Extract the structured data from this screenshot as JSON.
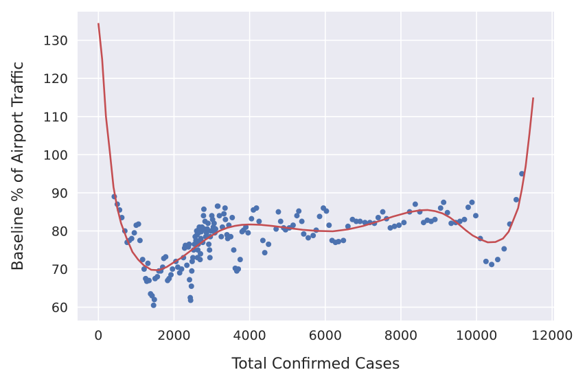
{
  "chart_data": {
    "type": "scatter",
    "title": "",
    "xlabel": "Total Confirmed Cases",
    "ylabel": "Baseline % of Airport Traffic",
    "xlim": [
      -550,
      12050
    ],
    "ylim": [
      56.5,
      137.5
    ],
    "x_ticks": [
      0,
      2000,
      4000,
      6000,
      8000,
      10000,
      12000
    ],
    "x_tick_labels": [
      "0",
      "2000",
      "4000",
      "6000",
      "8000",
      "10000",
      "12000"
    ],
    "y_ticks": [
      60,
      70,
      80,
      90,
      100,
      110,
      120,
      130
    ],
    "y_tick_labels": [
      "60",
      "70",
      "80",
      "90",
      "100",
      "110",
      "120",
      "130"
    ],
    "grid": true,
    "background": "#eaeaf2",
    "colors": {
      "points": "#4c72b0",
      "fit": "#c44e52",
      "grid": "#ffffff"
    },
    "series": [
      {
        "kind": "scatter",
        "points": [
          [
            420,
            89
          ],
          [
            500,
            87
          ],
          [
            560,
            85.5
          ],
          [
            620,
            83.5
          ],
          [
            700,
            80
          ],
          [
            760,
            77
          ],
          [
            820,
            77.5
          ],
          [
            880,
            78
          ],
          [
            950,
            79.5
          ],
          [
            1000,
            81.5
          ],
          [
            1060,
            81.8
          ],
          [
            1100,
            77.5
          ],
          [
            1170,
            72.5
          ],
          [
            1210,
            70
          ],
          [
            1250,
            67.5
          ],
          [
            1280,
            66.8
          ],
          [
            1310,
            71.5
          ],
          [
            1340,
            67
          ],
          [
            1380,
            63.5
          ],
          [
            1420,
            63
          ],
          [
            1460,
            60.5
          ],
          [
            1480,
            62
          ],
          [
            1500,
            67.5
          ],
          [
            1560,
            68
          ],
          [
            1600,
            69.5
          ],
          [
            1650,
            69.5
          ],
          [
            1700,
            70.5
          ],
          [
            1730,
            72.8
          ],
          [
            1780,
            73.2
          ],
          [
            1830,
            67
          ],
          [
            1870,
            67.5
          ],
          [
            1920,
            68.5
          ],
          [
            1960,
            70
          ],
          [
            2050,
            72
          ],
          [
            2100,
            70.5
          ],
          [
            2150,
            69
          ],
          [
            2200,
            70
          ],
          [
            2250,
            73
          ],
          [
            2280,
            75.5
          ],
          [
            2300,
            76.2
          ],
          [
            2340,
            71
          ],
          [
            2380,
            75.8
          ],
          [
            2400,
            76.5
          ],
          [
            2410,
            67.2
          ],
          [
            2430,
            62.5
          ],
          [
            2440,
            61.8
          ],
          [
            2460,
            65.5
          ],
          [
            2470,
            69.5
          ],
          [
            2480,
            72
          ],
          [
            2500,
            73
          ],
          [
            2520,
            75
          ],
          [
            2540,
            76.5
          ],
          [
            2560,
            78.5
          ],
          [
            2580,
            77.5
          ],
          [
            2600,
            80
          ],
          [
            2610,
            79
          ],
          [
            2620,
            73
          ],
          [
            2630,
            75
          ],
          [
            2640,
            76.5
          ],
          [
            2650,
            79.5
          ],
          [
            2660,
            80.5
          ],
          [
            2670,
            81
          ],
          [
            2680,
            77.5
          ],
          [
            2690,
            72.5
          ],
          [
            2700,
            74
          ],
          [
            2710,
            78
          ],
          [
            2720,
            79.8
          ],
          [
            2740,
            81
          ],
          [
            2760,
            77
          ],
          [
            2780,
            84
          ],
          [
            2790,
            85.7
          ],
          [
            2800,
            80.5
          ],
          [
            2820,
            82.5
          ],
          [
            2840,
            78.5
          ],
          [
            2860,
            79.5
          ],
          [
            2880,
            80.5
          ],
          [
            2900,
            82
          ],
          [
            2920,
            76.5
          ],
          [
            2940,
            75
          ],
          [
            2950,
            73
          ],
          [
            2960,
            78.5
          ],
          [
            2980,
            80
          ],
          [
            3000,
            84
          ],
          [
            3020,
            83
          ],
          [
            3040,
            81
          ],
          [
            3060,
            82
          ],
          [
            3080,
            79.5
          ],
          [
            3100,
            80.5
          ],
          [
            3150,
            86.5
          ],
          [
            3160,
            86.5
          ],
          [
            3200,
            84
          ],
          [
            3250,
            78.5
          ],
          [
            3280,
            81
          ],
          [
            3320,
            84.5
          ],
          [
            3350,
            86
          ],
          [
            3360,
            83
          ],
          [
            3400,
            79
          ],
          [
            3420,
            78
          ],
          [
            3450,
            81.5
          ],
          [
            3500,
            78.5
          ],
          [
            3540,
            83.5
          ],
          [
            3580,
            75
          ],
          [
            3620,
            70.2
          ],
          [
            3660,
            69.5
          ],
          [
            3700,
            70
          ],
          [
            3750,
            72.5
          ],
          [
            3800,
            79.8
          ],
          [
            3840,
            80.2
          ],
          [
            3900,
            81
          ],
          [
            3960,
            79.5
          ],
          [
            4050,
            83.2
          ],
          [
            4100,
            85.5
          ],
          [
            4180,
            86
          ],
          [
            4250,
            82.5
          ],
          [
            4350,
            77.5
          ],
          [
            4400,
            74.3
          ],
          [
            4500,
            76.5
          ],
          [
            4700,
            80.5
          ],
          [
            4760,
            85
          ],
          [
            4820,
            82.5
          ],
          [
            4900,
            80.8
          ],
          [
            4950,
            80.3
          ],
          [
            5050,
            80.8
          ],
          [
            5150,
            81.5
          ],
          [
            5250,
            84
          ],
          [
            5300,
            85.2
          ],
          [
            5380,
            82.5
          ],
          [
            5430,
            79.2
          ],
          [
            5550,
            78.2
          ],
          [
            5680,
            78.8
          ],
          [
            5760,
            80.2
          ],
          [
            5850,
            83.8
          ],
          [
            5950,
            86
          ],
          [
            6030,
            85.2
          ],
          [
            6100,
            81.5
          ],
          [
            6180,
            77.5
          ],
          [
            6270,
            77
          ],
          [
            6350,
            77.2
          ],
          [
            6480,
            77.5
          ],
          [
            6600,
            81.2
          ],
          [
            6720,
            83
          ],
          [
            6820,
            82.5
          ],
          [
            6920,
            82.5
          ],
          [
            7050,
            82.2
          ],
          [
            7180,
            82.2
          ],
          [
            7300,
            82
          ],
          [
            7400,
            83.5
          ],
          [
            7520,
            85
          ],
          [
            7620,
            83.2
          ],
          [
            7720,
            80.8
          ],
          [
            7830,
            81.2
          ],
          [
            7950,
            81.5
          ],
          [
            8080,
            82.2
          ],
          [
            8230,
            85
          ],
          [
            8380,
            87
          ],
          [
            8500,
            85
          ],
          [
            8600,
            82.2
          ],
          [
            8700,
            82.8
          ],
          [
            8800,
            82.5
          ],
          [
            8900,
            83
          ],
          [
            9050,
            86
          ],
          [
            9130,
            87.5
          ],
          [
            9230,
            84.8
          ],
          [
            9330,
            82
          ],
          [
            9450,
            82.2
          ],
          [
            9560,
            82.5
          ],
          [
            9680,
            83
          ],
          [
            9780,
            86.2
          ],
          [
            9880,
            87.5
          ],
          [
            9980,
            84
          ],
          [
            10100,
            78
          ],
          [
            10250,
            72
          ],
          [
            10400,
            71.2
          ],
          [
            10560,
            72.5
          ],
          [
            10730,
            75.3
          ],
          [
            10880,
            81.8
          ],
          [
            11050,
            88.2
          ],
          [
            11200,
            95
          ]
        ]
      },
      {
        "kind": "line",
        "points": [
          [
            0,
            134.5
          ],
          [
            100,
            125
          ],
          [
            200,
            110
          ],
          [
            300,
            101
          ],
          [
            400,
            91.5
          ],
          [
            500,
            86
          ],
          [
            600,
            82
          ],
          [
            750,
            78
          ],
          [
            900,
            74.5
          ],
          [
            1050,
            72.5
          ],
          [
            1200,
            71
          ],
          [
            1400,
            69.8
          ],
          [
            1600,
            69.7
          ],
          [
            1800,
            70.5
          ],
          [
            2000,
            71.8
          ],
          [
            2200,
            73
          ],
          [
            2400,
            74.5
          ],
          [
            2600,
            76
          ],
          [
            2800,
            77.5
          ],
          [
            3000,
            78.8
          ],
          [
            3200,
            80
          ],
          [
            3400,
            80.8
          ],
          [
            3600,
            81.3
          ],
          [
            3800,
            81.6
          ],
          [
            4000,
            81.7
          ],
          [
            4300,
            81.6
          ],
          [
            4600,
            81.3
          ],
          [
            5000,
            80.8
          ],
          [
            5400,
            80.3
          ],
          [
            5800,
            80
          ],
          [
            6200,
            79.9
          ],
          [
            6600,
            80.4
          ],
          [
            7000,
            81.3
          ],
          [
            7400,
            82.5
          ],
          [
            7800,
            83.8
          ],
          [
            8200,
            84.9
          ],
          [
            8500,
            85.4
          ],
          [
            8700,
            85.5
          ],
          [
            8900,
            85.2
          ],
          [
            9100,
            84.6
          ],
          [
            9300,
            83.5
          ],
          [
            9500,
            82
          ],
          [
            9700,
            80.3
          ],
          [
            9900,
            78.8
          ],
          [
            10100,
            77.8
          ],
          [
            10300,
            77
          ],
          [
            10500,
            77.1
          ],
          [
            10700,
            78
          ],
          [
            10850,
            79.8
          ],
          [
            11000,
            83.5
          ],
          [
            11100,
            86
          ],
          [
            11200,
            91
          ],
          [
            11300,
            97
          ],
          [
            11400,
            105.5
          ],
          [
            11500,
            115
          ]
        ]
      }
    ]
  }
}
